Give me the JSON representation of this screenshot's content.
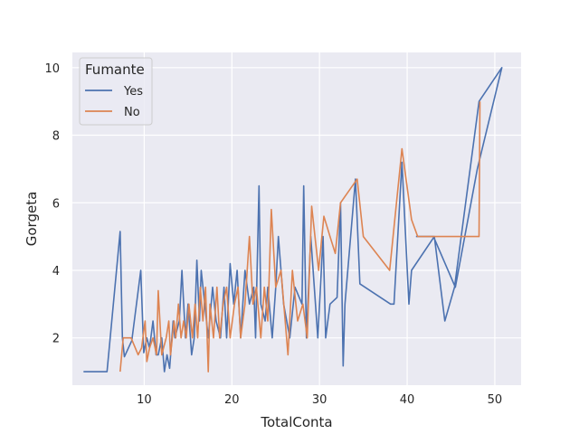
{
  "chart_data": {
    "type": "line",
    "title": "",
    "xlabel": "TotalConta",
    "ylabel": "Gorgeta",
    "xlim": [
      1.8,
      53.0
    ],
    "ylim": [
      0.6,
      10.45
    ],
    "xticks": [
      10,
      20,
      30,
      40,
      50
    ],
    "yticks": [
      2,
      4,
      6,
      8,
      10
    ],
    "grid": true,
    "legend": {
      "title": "Fumante",
      "position": "top-left"
    },
    "series": [
      {
        "name": "Yes",
        "color": "#4c72b0",
        "points": [
          [
            3.07,
            1.0
          ],
          [
            5.75,
            1.0
          ],
          [
            7.25,
            5.15
          ],
          [
            7.51,
            2.0
          ],
          [
            7.74,
            1.44
          ],
          [
            8.58,
            1.92
          ],
          [
            9.6,
            4.0
          ],
          [
            9.94,
            1.56
          ],
          [
            10.3,
            2.0
          ],
          [
            10.6,
            1.7
          ],
          [
            11.0,
            2.5
          ],
          [
            11.35,
            1.5
          ],
          [
            11.6,
            1.5
          ],
          [
            12.0,
            2.0
          ],
          [
            12.3,
            1.0
          ],
          [
            12.6,
            1.5
          ],
          [
            12.9,
            1.1
          ],
          [
            13.3,
            2.5
          ],
          [
            13.5,
            2.0
          ],
          [
            14.0,
            2.5
          ],
          [
            14.3,
            4.0
          ],
          [
            14.7,
            2.0
          ],
          [
            15.0,
            3.0
          ],
          [
            15.4,
            1.5
          ],
          [
            15.7,
            2.0
          ],
          [
            16.0,
            4.3
          ],
          [
            16.3,
            2.5
          ],
          [
            16.5,
            4.0
          ],
          [
            16.9,
            3.0
          ],
          [
            17.3,
            2.0
          ],
          [
            17.8,
            3.5
          ],
          [
            18.2,
            2.5
          ],
          [
            18.7,
            2.0
          ],
          [
            19.1,
            3.5
          ],
          [
            19.4,
            2.0
          ],
          [
            19.8,
            4.2
          ],
          [
            20.2,
            3.0
          ],
          [
            20.6,
            4.0
          ],
          [
            21.0,
            2.0
          ],
          [
            21.5,
            4.0
          ],
          [
            22.0,
            3.0
          ],
          [
            22.5,
            3.5
          ],
          [
            22.7,
            2.0
          ],
          [
            23.1,
            6.5
          ],
          [
            23.3,
            3.0
          ],
          [
            23.8,
            2.5
          ],
          [
            24.1,
            3.5
          ],
          [
            24.6,
            2.0
          ],
          [
            25.0,
            3.5
          ],
          [
            25.3,
            5.0
          ],
          [
            25.9,
            3.0
          ],
          [
            26.6,
            2.0
          ],
          [
            27.2,
            3.5
          ],
          [
            28.0,
            3.0
          ],
          [
            28.2,
            6.5
          ],
          [
            28.5,
            2.0
          ],
          [
            29.0,
            5.0
          ],
          [
            29.8,
            2.0
          ],
          [
            30.4,
            5.0
          ],
          [
            30.7,
            2.0
          ],
          [
            31.2,
            3.0
          ],
          [
            32.0,
            3.2
          ],
          [
            32.4,
            6.0
          ],
          [
            32.7,
            1.17
          ],
          [
            32.9,
            3.0
          ],
          [
            34.1,
            6.7
          ],
          [
            34.6,
            3.6
          ],
          [
            38.1,
            3.0
          ],
          [
            38.5,
            3.0
          ],
          [
            39.4,
            7.2
          ],
          [
            40.2,
            3.0
          ],
          [
            40.5,
            4.0
          ],
          [
            43.1,
            5.0
          ],
          [
            44.3,
            2.5
          ],
          [
            45.4,
            3.5
          ],
          [
            48.2,
            9.0
          ],
          [
            50.8,
            10.0
          ],
          [
            48.0,
            7.0
          ],
          [
            45.5,
            3.5
          ],
          [
            43.0,
            5.0
          ],
          [
            41.0,
            5.0
          ]
        ]
      },
      {
        "name": "No",
        "color": "#dd8452",
        "points": [
          [
            7.25,
            1.0
          ],
          [
            7.6,
            2.0
          ],
          [
            8.5,
            2.0
          ],
          [
            9.3,
            1.5
          ],
          [
            9.7,
            1.7
          ],
          [
            10.1,
            2.5
          ],
          [
            10.3,
            1.3
          ],
          [
            10.6,
            1.7
          ],
          [
            11.0,
            2.0
          ],
          [
            11.4,
            1.5
          ],
          [
            11.6,
            3.4
          ],
          [
            12.0,
            1.5
          ],
          [
            12.5,
            2.0
          ],
          [
            12.8,
            2.5
          ],
          [
            13.0,
            1.5
          ],
          [
            13.4,
            2.5
          ],
          [
            13.6,
            2.0
          ],
          [
            13.9,
            3.0
          ],
          [
            14.2,
            2.0
          ],
          [
            14.5,
            2.5
          ],
          [
            14.8,
            2.0
          ],
          [
            15.1,
            3.0
          ],
          [
            15.5,
            2.0
          ],
          [
            15.8,
            3.0
          ],
          [
            16.1,
            2.0
          ],
          [
            16.4,
            3.5
          ],
          [
            16.7,
            2.5
          ],
          [
            17.0,
            3.5
          ],
          [
            17.3,
            1.0
          ],
          [
            17.5,
            3.0
          ],
          [
            17.9,
            2.0
          ],
          [
            18.3,
            3.5
          ],
          [
            18.6,
            2.0
          ],
          [
            19.0,
            3.0
          ],
          [
            19.4,
            3.5
          ],
          [
            19.8,
            2.0
          ],
          [
            20.3,
            3.0
          ],
          [
            20.7,
            3.5
          ],
          [
            21.0,
            2.0
          ],
          [
            21.5,
            3.0
          ],
          [
            22.0,
            5.0
          ],
          [
            22.4,
            3.0
          ],
          [
            22.8,
            3.5
          ],
          [
            23.3,
            2.0
          ],
          [
            23.7,
            3.5
          ],
          [
            24.1,
            2.5
          ],
          [
            24.5,
            5.8
          ],
          [
            25.0,
            3.5
          ],
          [
            25.6,
            4.0
          ],
          [
            26.4,
            1.5
          ],
          [
            26.9,
            4.0
          ],
          [
            27.5,
            2.5
          ],
          [
            28.1,
            3.0
          ],
          [
            28.6,
            2.0
          ],
          [
            29.1,
            5.9
          ],
          [
            29.9,
            4.0
          ],
          [
            30.5,
            5.6
          ],
          [
            31.2,
            5.0
          ],
          [
            31.8,
            4.5
          ],
          [
            32.4,
            6.0
          ],
          [
            34.3,
            6.7
          ],
          [
            35.0,
            5.0
          ],
          [
            38.0,
            4.0
          ],
          [
            39.4,
            7.6
          ],
          [
            40.5,
            5.5
          ],
          [
            41.2,
            5.0
          ],
          [
            48.2,
            5.0
          ],
          [
            48.3,
            9.0
          ]
        ]
      }
    ]
  }
}
